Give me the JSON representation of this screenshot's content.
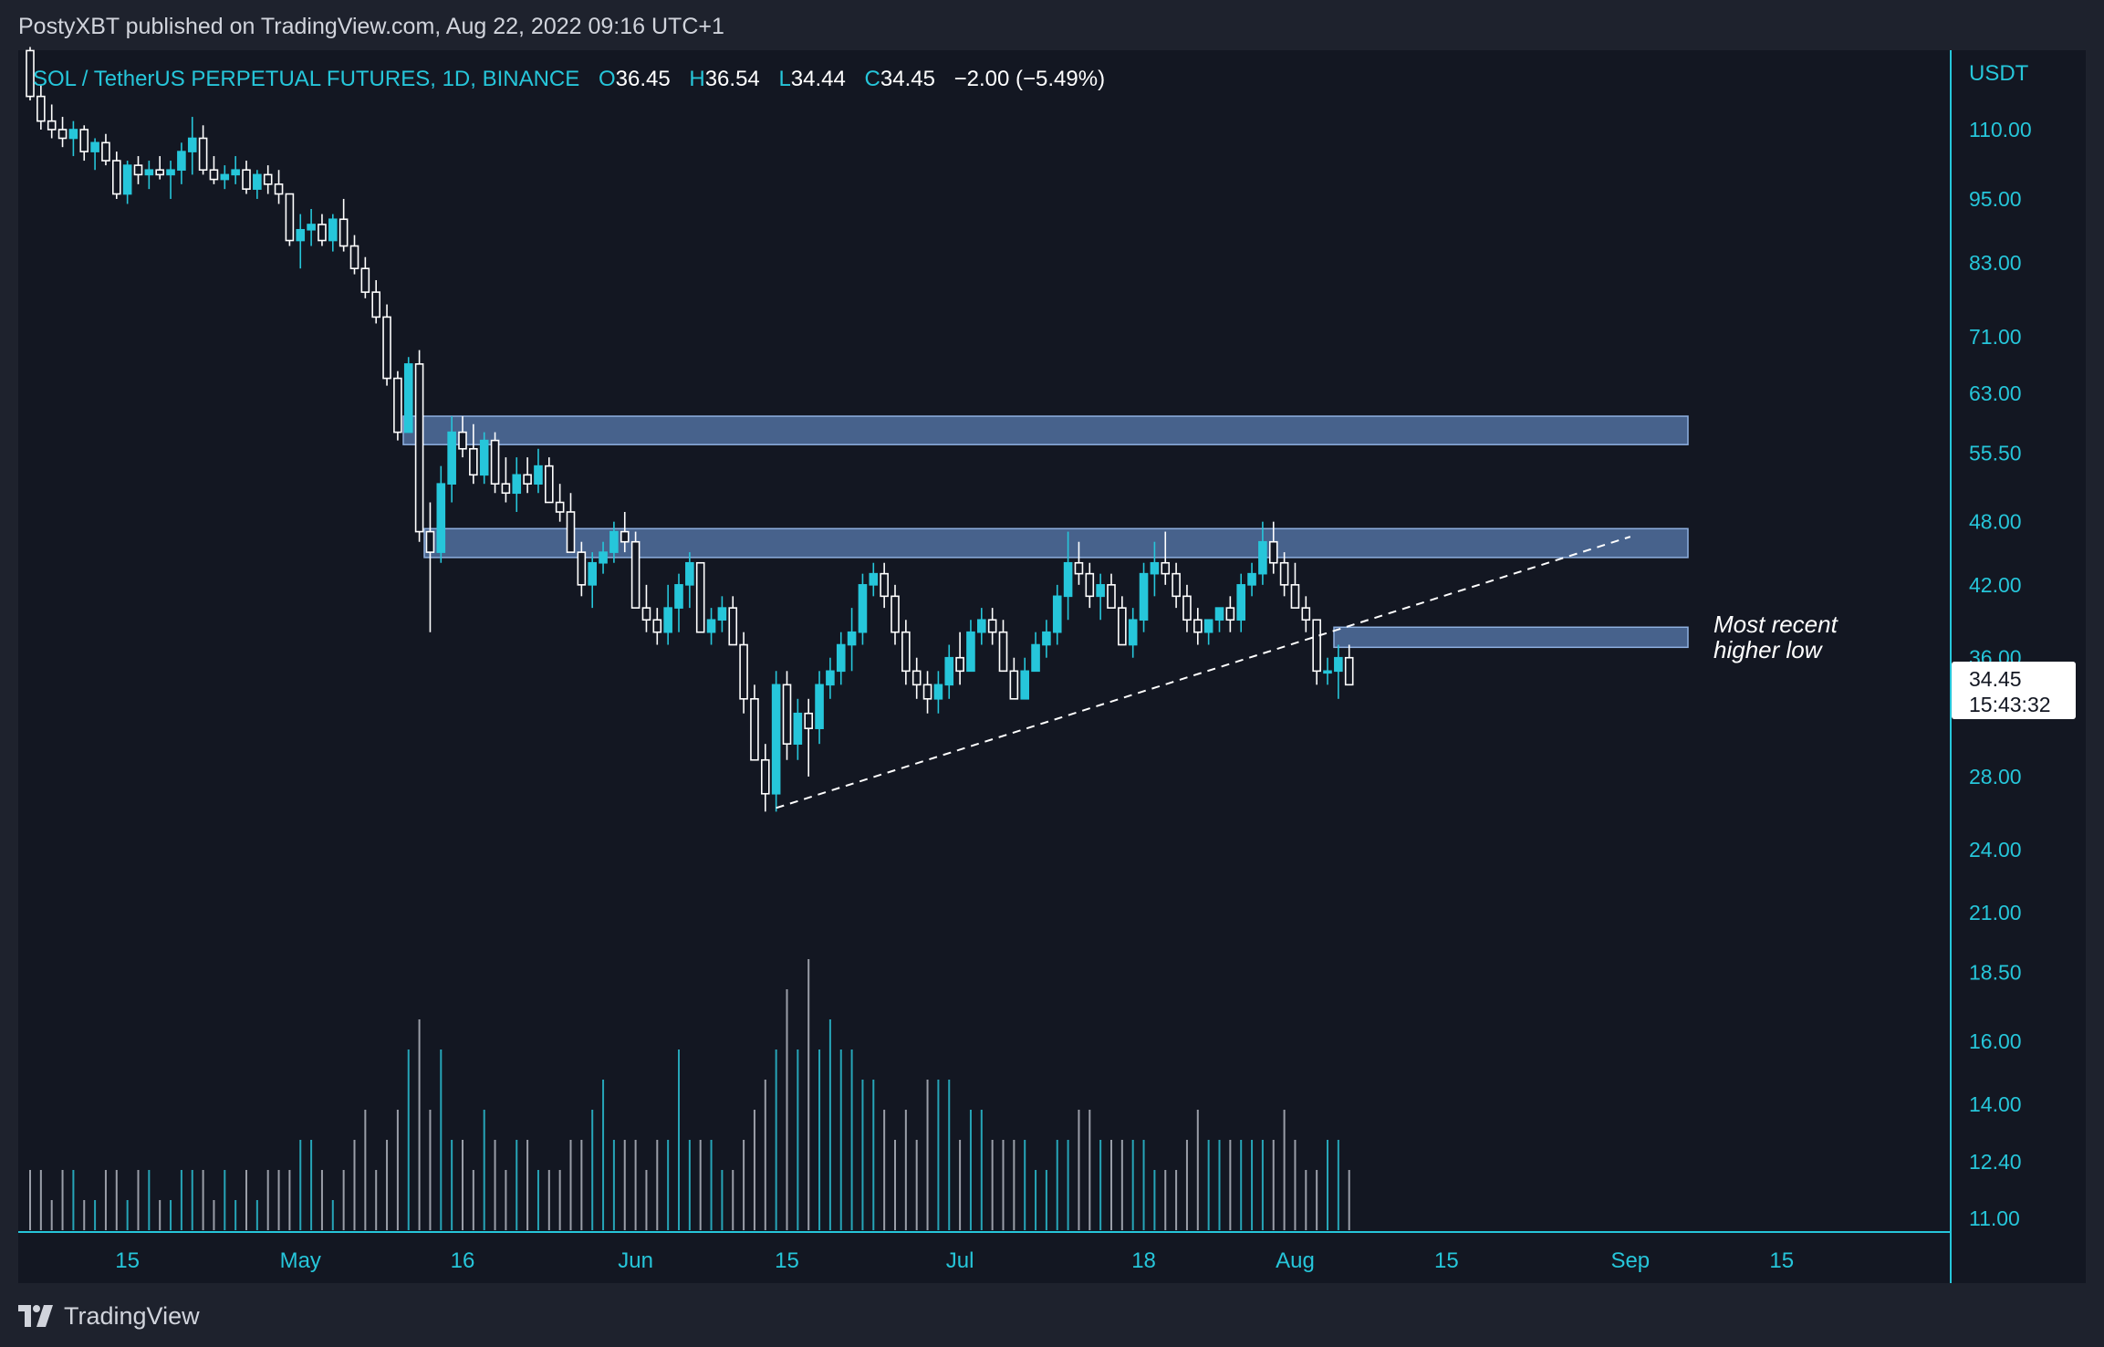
{
  "header": {
    "publish_line": "PostyXBT published on TradingView.com, Aug 22, 2022 09:16 UTC+1"
  },
  "legend": {
    "symbol": "SOL / TetherUS PERPETUAL FUTURES, 1D, BINANCE",
    "o_label": "O",
    "o_value": "36.45",
    "h_label": "H",
    "h_value": "36.54",
    "l_label": "L",
    "l_value": "34.44",
    "c_label": "C",
    "c_value": "34.45",
    "change": "−2.00 (−5.49%)"
  },
  "price_axis": {
    "currency": "USDT",
    "ticks": [
      "110.00",
      "95.00",
      "83.00",
      "71.00",
      "63.00",
      "55.50",
      "48.00",
      "42.00",
      "36.00",
      "28.00",
      "24.00",
      "21.00",
      "18.50",
      "16.00",
      "14.00",
      "12.40",
      "11.00"
    ]
  },
  "time_axis": {
    "ticks": [
      "15",
      "May",
      "16",
      "Jun",
      "15",
      "Jul",
      "18",
      "Aug",
      "15",
      "Sep",
      "15"
    ]
  },
  "last_price": {
    "price": "34.45",
    "countdown": "15:43:32"
  },
  "annotation": {
    "line1": "Most recent",
    "line2": "higher low"
  },
  "footer": {
    "brand": "TradingView",
    "logo_icon": "tradingview-logo-icon"
  },
  "colors": {
    "background": "#131722",
    "up": "#26c6da",
    "down": "#ffffff",
    "zone": "#5b7fb5",
    "text": "#d1d4dc",
    "axis": "#26c6da"
  },
  "chart_data": {
    "type": "candlestick",
    "symbol": "SOL / TetherUS PERPETUAL FUTURES",
    "interval": "1D",
    "exchange": "BINANCE",
    "y_scale": "log",
    "ylim": [
      10.5,
      140
    ],
    "x_start": "2022-04-06",
    "x_end": "2022-09-30",
    "candles_ohlc": [
      [
        130,
        131,
        117,
        118
      ],
      [
        118,
        121,
        110,
        112
      ],
      [
        112,
        116,
        108,
        110
      ],
      [
        110,
        113,
        106,
        108
      ],
      [
        108,
        112,
        104,
        110
      ],
      [
        110,
        111,
        103,
        105
      ],
      [
        105,
        108,
        101,
        107
      ],
      [
        107,
        109,
        102,
        103
      ],
      [
        103,
        105,
        95,
        96
      ],
      [
        96,
        103,
        94,
        102
      ],
      [
        102,
        104,
        98,
        100
      ],
      [
        100,
        103,
        97,
        101
      ],
      [
        101,
        104,
        99,
        100
      ],
      [
        100,
        103,
        95,
        101
      ],
      [
        101,
        107,
        98,
        105
      ],
      [
        105,
        113,
        100,
        108
      ],
      [
        108,
        111,
        100,
        101
      ],
      [
        101,
        104,
        98,
        99
      ],
      [
        99,
        102,
        97,
        100
      ],
      [
        100,
        104,
        98,
        101
      ],
      [
        101,
        103,
        96,
        97
      ],
      [
        97,
        101,
        95,
        100
      ],
      [
        100,
        102,
        96,
        98
      ],
      [
        98,
        101,
        94,
        96
      ],
      [
        96,
        93,
        86,
        87
      ],
      [
        87,
        92,
        82,
        89
      ],
      [
        89,
        93,
        86,
        90
      ],
      [
        90,
        92,
        86,
        87
      ],
      [
        87,
        92,
        85,
        91
      ],
      [
        91,
        95,
        85,
        86
      ],
      [
        86,
        88,
        81,
        82
      ],
      [
        82,
        84,
        77,
        78
      ],
      [
        78,
        80,
        73,
        74
      ],
      [
        74,
        76,
        64,
        65
      ],
      [
        65,
        66,
        57,
        58
      ],
      [
        58,
        68,
        58,
        67
      ],
      [
        67,
        69,
        46,
        47
      ],
      [
        47,
        50,
        38,
        45
      ],
      [
        45,
        54,
        44,
        52
      ],
      [
        52,
        60,
        50,
        58
      ],
      [
        58,
        60,
        55,
        56
      ],
      [
        56,
        59,
        52,
        53
      ],
      [
        53,
        58,
        52,
        57
      ],
      [
        57,
        58,
        51,
        52
      ],
      [
        52,
        55,
        50,
        51
      ],
      [
        51,
        55,
        49,
        53
      ],
      [
        53,
        55,
        51,
        52
      ],
      [
        52,
        56,
        51,
        54
      ],
      [
        54,
        55,
        50,
        50
      ],
      [
        50,
        52,
        48,
        49
      ],
      [
        49,
        51,
        45,
        45
      ],
      [
        45,
        46,
        41,
        42
      ],
      [
        42,
        45,
        40,
        44
      ],
      [
        44,
        46,
        43,
        45
      ],
      [
        45,
        48,
        44,
        47
      ],
      [
        47,
        49,
        45,
        46
      ],
      [
        46,
        47,
        40,
        40
      ],
      [
        40,
        42,
        38,
        39
      ],
      [
        39,
        40,
        37,
        38
      ],
      [
        38,
        42,
        37,
        40
      ],
      [
        40,
        43,
        38,
        42
      ],
      [
        42,
        45,
        40,
        44
      ],
      [
        44,
        44,
        38,
        38
      ],
      [
        38,
        40,
        37,
        39
      ],
      [
        39,
        41,
        38,
        40
      ],
      [
        40,
        41,
        37,
        37
      ],
      [
        37,
        38,
        32,
        33
      ],
      [
        33,
        34,
        29,
        29
      ],
      [
        29,
        30,
        26,
        27
      ],
      [
        27,
        35,
        26,
        34
      ],
      [
        34,
        35,
        29,
        30
      ],
      [
        30,
        33,
        29,
        32
      ],
      [
        32,
        33,
        28,
        31
      ],
      [
        31,
        35,
        30,
        34
      ],
      [
        34,
        36,
        33,
        35
      ],
      [
        35,
        38,
        34,
        37
      ],
      [
        37,
        40,
        35,
        38
      ],
      [
        38,
        43,
        37,
        42
      ],
      [
        42,
        44,
        41,
        43
      ],
      [
        43,
        44,
        40,
        41
      ],
      [
        41,
        42,
        37,
        38
      ],
      [
        38,
        39,
        34,
        35
      ],
      [
        35,
        36,
        33,
        34
      ],
      [
        34,
        35,
        32,
        33
      ],
      [
        33,
        35,
        32,
        34
      ],
      [
        34,
        37,
        33,
        36
      ],
      [
        36,
        38,
        34,
        35
      ],
      [
        35,
        39,
        35,
        38
      ],
      [
        38,
        40,
        37,
        39
      ],
      [
        39,
        40,
        37,
        38
      ],
      [
        38,
        39,
        35,
        35
      ],
      [
        35,
        36,
        33,
        33
      ],
      [
        33,
        36,
        33,
        35
      ],
      [
        35,
        38,
        35,
        37
      ],
      [
        37,
        39,
        36,
        38
      ],
      [
        38,
        42,
        37,
        41
      ],
      [
        41,
        47,
        39,
        44
      ],
      [
        44,
        46,
        42,
        43
      ],
      [
        43,
        44,
        40,
        41
      ],
      [
        41,
        43,
        39,
        42
      ],
      [
        42,
        43,
        40,
        40
      ],
      [
        40,
        41,
        37,
        37
      ],
      [
        37,
        40,
        36,
        39
      ],
      [
        39,
        44,
        38,
        43
      ],
      [
        43,
        46,
        41,
        44
      ],
      [
        44,
        47,
        42,
        43
      ],
      [
        43,
        44,
        40,
        41
      ],
      [
        41,
        42,
        38,
        39
      ],
      [
        39,
        40,
        37,
        38
      ],
      [
        38,
        39,
        37,
        39
      ],
      [
        39,
        40,
        38,
        40
      ],
      [
        40,
        41,
        38,
        39
      ],
      [
        39,
        43,
        38,
        42
      ],
      [
        42,
        44,
        41,
        43
      ],
      [
        43,
        48,
        42,
        46
      ],
      [
        46,
        48,
        43,
        44
      ],
      [
        44,
        45,
        41,
        42
      ],
      [
        42,
        44,
        40,
        40
      ],
      [
        40,
        41,
        38,
        39
      ],
      [
        39,
        39,
        34,
        35
      ],
      [
        35,
        36,
        34,
        35
      ],
      [
        35,
        37,
        33,
        36
      ],
      [
        36,
        37,
        34,
        34
      ]
    ],
    "volume_relative": [
      0.2,
      0.2,
      0.1,
      0.2,
      0.2,
      0.1,
      0.1,
      0.2,
      0.2,
      0.1,
      0.2,
      0.2,
      0.1,
      0.1,
      0.2,
      0.2,
      0.2,
      0.1,
      0.2,
      0.1,
      0.2,
      0.1,
      0.2,
      0.2,
      0.2,
      0.3,
      0.3,
      0.2,
      0.1,
      0.2,
      0.3,
      0.4,
      0.2,
      0.3,
      0.4,
      0.6,
      0.7,
      0.4,
      0.6,
      0.3,
      0.3,
      0.2,
      0.4,
      0.3,
      0.2,
      0.3,
      0.3,
      0.2,
      0.2,
      0.2,
      0.3,
      0.3,
      0.4,
      0.5,
      0.3,
      0.3,
      0.3,
      0.2,
      0.3,
      0.3,
      0.6,
      0.3,
      0.3,
      0.3,
      0.2,
      0.2,
      0.3,
      0.4,
      0.5,
      0.6,
      0.8,
      0.6,
      0.9,
      0.6,
      0.7,
      0.6,
      0.6,
      0.5,
      0.5,
      0.4,
      0.3,
      0.4,
      0.3,
      0.5,
      0.5,
      0.5,
      0.3,
      0.4,
      0.4,
      0.3,
      0.3,
      0.3,
      0.3,
      0.2,
      0.2,
      0.3,
      0.3,
      0.4,
      0.4,
      0.3,
      0.3,
      0.3,
      0.3,
      0.3,
      0.2,
      0.2,
      0.2,
      0.3,
      0.4,
      0.3,
      0.3,
      0.3,
      0.3,
      0.3,
      0.3,
      0.3,
      0.4,
      0.3,
      0.2,
      0.2,
      0.3,
      0.3,
      0.2
    ],
    "zones": [
      {
        "from": 56.5,
        "to": 60.0
      },
      {
        "from": 44.5,
        "to": 47.3
      },
      {
        "from": 36.8,
        "to": 38.4
      }
    ],
    "trendlines": [
      {
        "dashed": true,
        "from": [
          "2022-06-14",
          26.2
        ],
        "to": [
          "2022-09-01",
          46.5
        ]
      }
    ],
    "annotations": [
      {
        "text": "Most recent higher low"
      }
    ]
  }
}
